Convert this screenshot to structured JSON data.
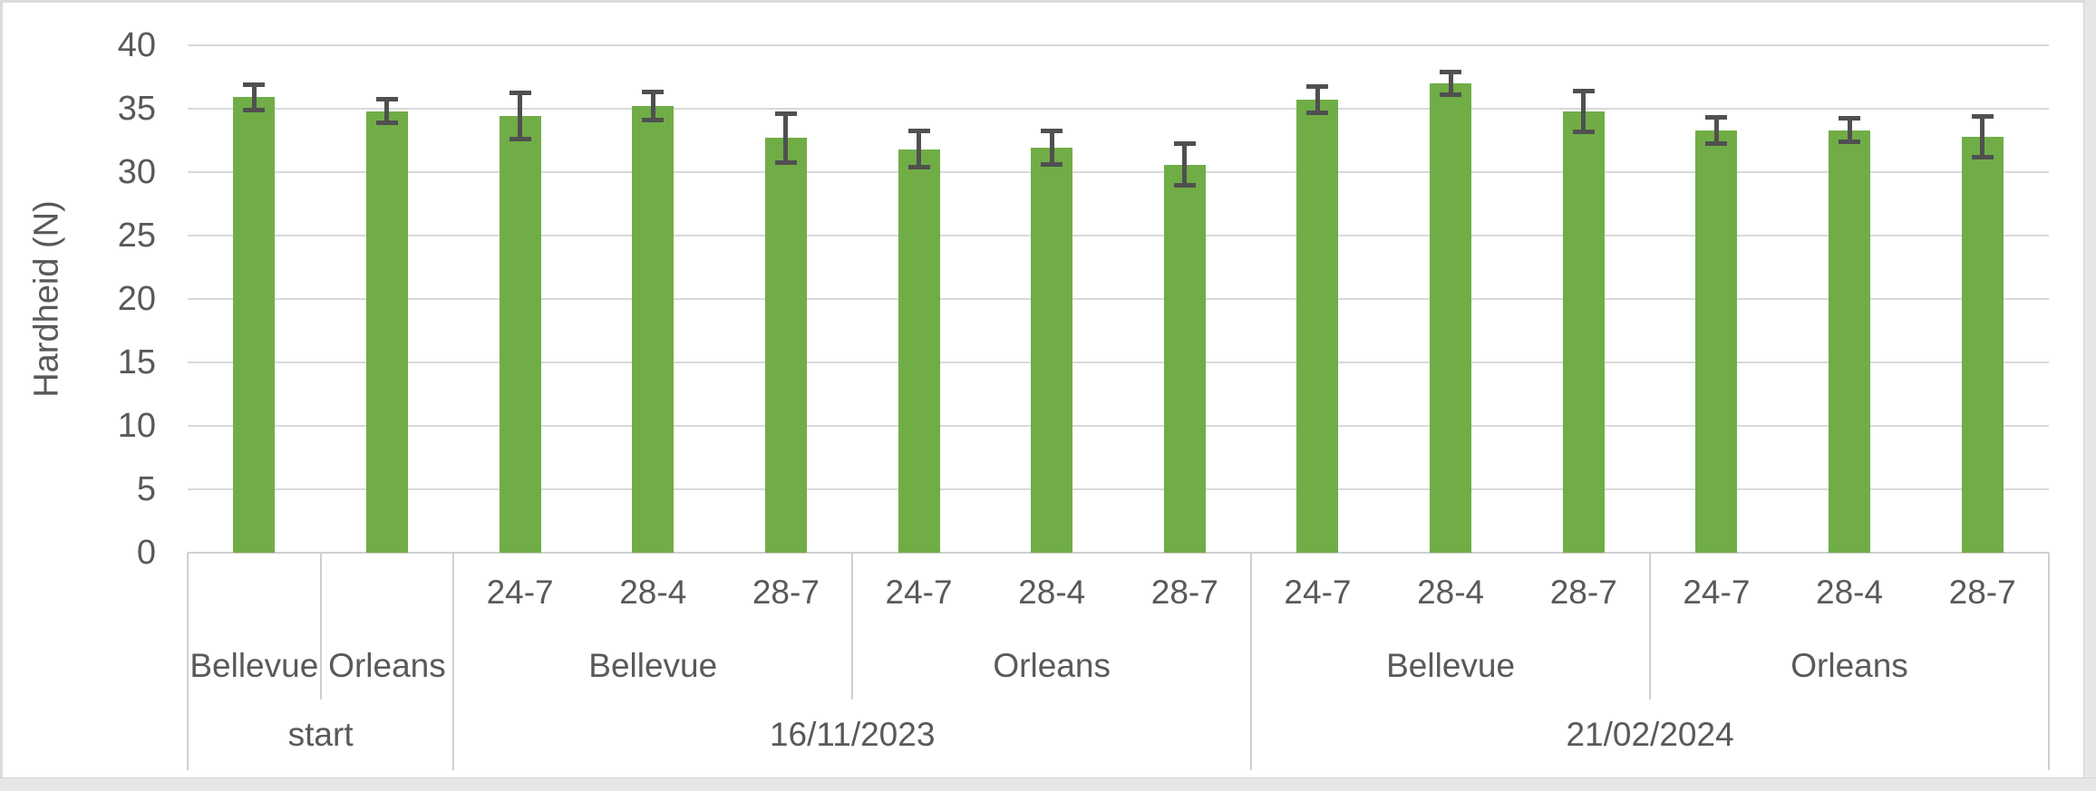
{
  "chart_data": {
    "type": "bar",
    "title": "",
    "xlabel": "",
    "ylabel": "Hardheid (N)",
    "ylim": [
      0,
      40
    ],
    "y_ticks": [
      0,
      5,
      10,
      15,
      20,
      25,
      30,
      35,
      40
    ],
    "grid": true,
    "legend": false,
    "series_name": "Hardheid (N)",
    "values": [
      35.9,
      34.8,
      34.4,
      35.2,
      32.7,
      31.8,
      31.9,
      30.6,
      35.7,
      37.0,
      34.8,
      33.3,
      33.3,
      32.8
    ],
    "errors": [
      1.2,
      1.1,
      2.0,
      1.3,
      2.1,
      1.6,
      1.5,
      1.8,
      1.2,
      1.1,
      1.8,
      1.2,
      1.1,
      1.8
    ],
    "x_levels": {
      "treatment_labels": [
        "",
        "",
        "24-7",
        "28-4",
        "28-7",
        "24-7",
        "28-4",
        "28-7",
        "24-7",
        "28-4",
        "28-7",
        "24-7",
        "28-4",
        "28-7"
      ],
      "variety_groups": [
        {
          "label": "Bellevue",
          "from": 0,
          "to": 1
        },
        {
          "label": "Orleans",
          "from": 1,
          "to": 2
        },
        {
          "label": "Bellevue",
          "from": 2,
          "to": 5
        },
        {
          "label": "Orleans",
          "from": 5,
          "to": 8
        },
        {
          "label": "Bellevue",
          "from": 8,
          "to": 11
        },
        {
          "label": "Orleans",
          "from": 11,
          "to": 14
        }
      ],
      "date_groups": [
        {
          "label": "start",
          "from": 0,
          "to": 2
        },
        {
          "label": "16/11/2023",
          "from": 2,
          "to": 8
        },
        {
          "label": "21/02/2024",
          "from": 8,
          "to": 14
        }
      ]
    }
  },
  "colors": {
    "bar_fill": "#70AD47",
    "error_bar": "#505050",
    "gridline": "#d9d9d9",
    "axis_line": "#cfcfcf",
    "separator_line": "#cfcfcf",
    "text": "#595959",
    "frame_border": "#dcdcdc",
    "outer_band": "#e8e6e5"
  }
}
